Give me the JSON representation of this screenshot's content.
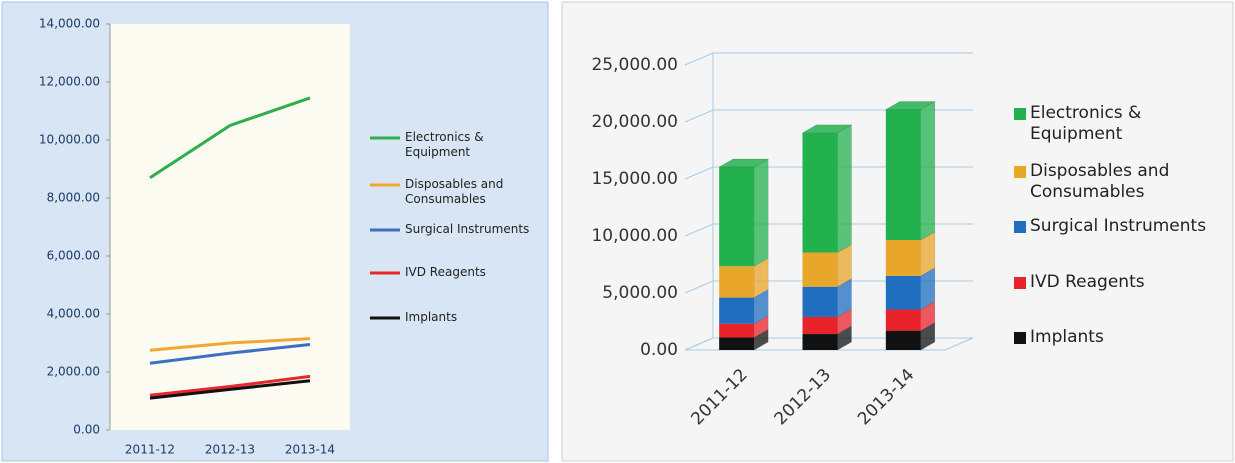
{
  "chart_data": [
    {
      "type": "line",
      "categories": [
        "2011-12",
        "2012-13",
        "2013-14"
      ],
      "series": [
        {
          "name": "Electronics & Equipment",
          "color": "#2fae4a",
          "values": [
            8700,
            10500,
            11450
          ]
        },
        {
          "name": "Disposables and Consumables",
          "color": "#f0a830",
          "values": [
            2750,
            3000,
            3150
          ]
        },
        {
          "name": "Surgical Instruments",
          "color": "#3c6fc4",
          "values": [
            2300,
            2650,
            2950
          ]
        },
        {
          "name": "IVD Reagents",
          "color": "#e8262c",
          "values": [
            1200,
            1500,
            1850
          ]
        },
        {
          "name": "Implants",
          "color": "#111111",
          "values": [
            1100,
            1400,
            1700
          ]
        }
      ],
      "ylim": [
        0,
        14000
      ],
      "yticks": [
        {
          "value": 0,
          "label": "0.00"
        },
        {
          "value": 2000,
          "label": "2,000.00"
        },
        {
          "value": 4000,
          "label": "4,000.00"
        },
        {
          "value": 6000,
          "label": "6,000.00"
        },
        {
          "value": 8000,
          "label": "8,000.00"
        },
        {
          "value": 10000,
          "label": "10,000.00"
        },
        {
          "value": 12000,
          "label": "12,000.00"
        },
        {
          "value": 14000,
          "label": "14,000.00"
        }
      ],
      "grid": false
    },
    {
      "type": "bar",
      "stacked": true,
      "categories": [
        "2011-12",
        "2012-13",
        "2013-14"
      ],
      "series": [
        {
          "name": "Electronics & Equipment",
          "color": "#23b14d",
          "values": [
            8700,
            10500,
            11450
          ]
        },
        {
          "name": "Disposables and Consumables",
          "color": "#e8a62a",
          "values": [
            2750,
            3000,
            3150
          ]
        },
        {
          "name": "Surgical Instruments",
          "color": "#1f6ec0",
          "values": [
            2300,
            2650,
            2950
          ]
        },
        {
          "name": "IVD Reagents",
          "color": "#e8232a",
          "values": [
            1200,
            1500,
            1850
          ]
        },
        {
          "name": "Implants",
          "color": "#111111",
          "values": [
            1100,
            1400,
            1700
          ]
        }
      ],
      "ylim": [
        0,
        25000
      ],
      "yticks": [
        {
          "value": 0,
          "label": "0.00"
        },
        {
          "value": 5000,
          "label": "5,000.00"
        },
        {
          "value": 10000,
          "label": "10,000.00"
        },
        {
          "value": 15000,
          "label": "15,000.00"
        },
        {
          "value": 20000,
          "label": "20,000.00"
        },
        {
          "value": 25000,
          "label": "25,000.00"
        }
      ],
      "grid": true
    }
  ]
}
